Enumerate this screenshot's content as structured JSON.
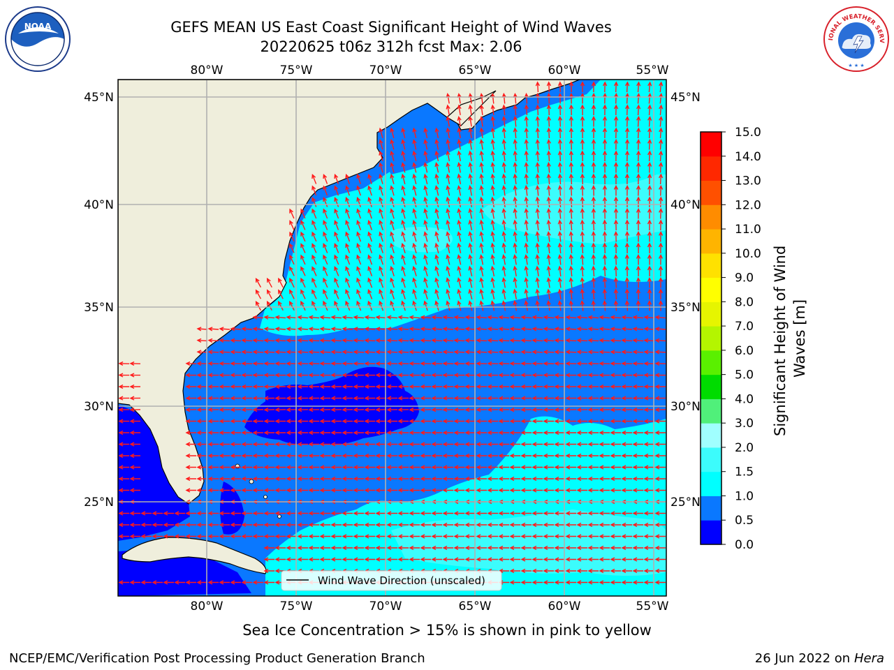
{
  "title": {
    "line1": "GEFS MEAN US East Coast Significant Height of Wind Waves",
    "line2": "20220625 t06z 312h fcst   Max: 2.06"
  },
  "logos": {
    "noaa": {
      "text": "NOAA",
      "icon": "noaa-seal-icon"
    },
    "nws": {
      "text": "NATIONAL WEATHER SERVICE",
      "icon": "nws-seal-icon"
    }
  },
  "map": {
    "projection": "plate-carree",
    "lon_range": [
      -85,
      -54.2
    ],
    "lat_range": [
      20.5,
      45.8
    ],
    "grid": true,
    "lon_ticks": [
      "80°W",
      "75°W",
      "70°W",
      "65°W",
      "60°W",
      "55°W"
    ],
    "lat_ticks": [
      "45°N",
      "40°N",
      "35°N",
      "30°N",
      "25°N"
    ],
    "land_color": "#efeedc",
    "legend_label": "Wind Wave Direction (unscaled)",
    "arrow_color": "#ff1a1a"
  },
  "colorbar": {
    "label": "Significant Height of Wind Waves [m]",
    "ticks": [
      "0.0",
      "0.5",
      "1.0",
      "1.5",
      "2.0",
      "3.0",
      "4.0",
      "5.0",
      "6.0",
      "7.0",
      "8.0",
      "9.0",
      "10.0",
      "11.0",
      "12.0",
      "13.0",
      "14.0",
      "15.0"
    ],
    "colors": [
      "#0000ff",
      "#0a78ff",
      "#00ffff",
      "#3cfcfc",
      "#a0ffff",
      "#50f07a",
      "#00dc00",
      "#5af000",
      "#b4f500",
      "#e6f500",
      "#ffff00",
      "#ffe100",
      "#ffb400",
      "#ff8c00",
      "#ff5000",
      "#ff2800",
      "#ff0000"
    ]
  },
  "footer": {
    "ice_note": "Sea Ice Concentration > 15% is shown in pink to yellow",
    "credit": "NCEP/EMC/Verification Post Processing Product Generation Branch",
    "date": "26 Jun 2022 on",
    "machine": "Hera"
  }
}
